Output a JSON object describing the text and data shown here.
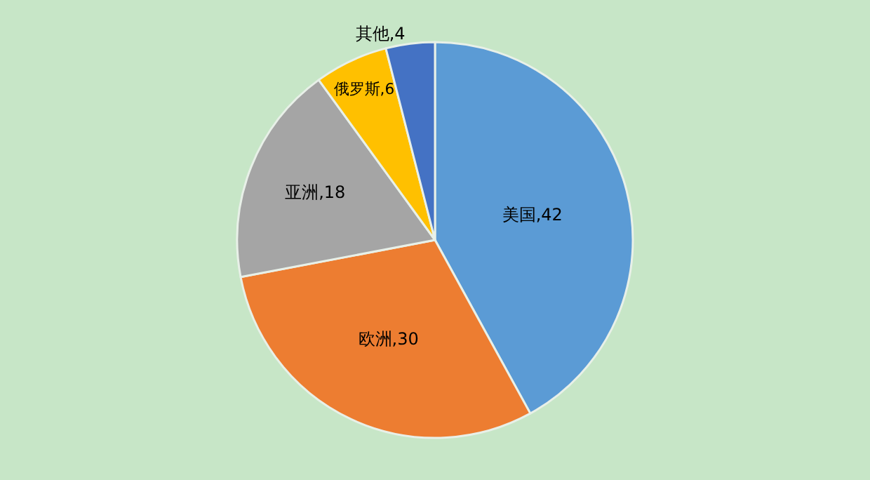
{
  "chart_data": {
    "type": "pie",
    "categories": [
      "美国",
      "欧洲",
      "亚洲",
      "俄罗斯",
      "其他"
    ],
    "values": [
      42,
      30,
      18,
      6,
      4
    ],
    "colors": [
      "#5b9bd5",
      "#ed7d31",
      "#a5a5a5",
      "#ffc000",
      "#4472c4"
    ],
    "value_labels": [
      ",42",
      ",30",
      ",18",
      ",6",
      ",4"
    ],
    "legend": false
  }
}
